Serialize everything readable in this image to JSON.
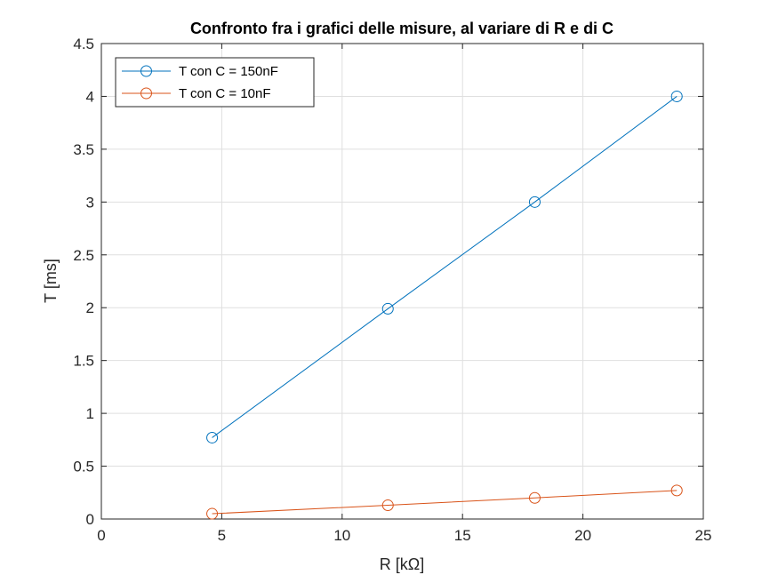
{
  "chart_data": {
    "type": "line",
    "title": "Confronto fra i grafici delle misure, al variare di R e di C",
    "xlabel": "R [kΩ]",
    "ylabel": "T [ms]",
    "xlim": [
      0,
      25
    ],
    "ylim": [
      0,
      4.5
    ],
    "xticks": [
      0,
      5,
      10,
      15,
      20,
      25
    ],
    "yticks": [
      0,
      0.5,
      1,
      1.5,
      2,
      2.5,
      3,
      3.5,
      4,
      4.5
    ],
    "xtick_labels": [
      "0",
      "5",
      "10",
      "15",
      "20",
      "25"
    ],
    "ytick_labels": [
      "0",
      "0.5",
      "1",
      "1.5",
      "2",
      "2.5",
      "3",
      "3.5",
      "4",
      "4.5"
    ],
    "grid": true,
    "legend_position": "top-left",
    "marker": "circle",
    "series": [
      {
        "name": "T con C = 150nF",
        "color": "#0072BD",
        "x": [
          4.6,
          11.9,
          18.0,
          23.9
        ],
        "y": [
          0.77,
          1.99,
          3.0,
          4.0
        ]
      },
      {
        "name": "T con C = 10nF",
        "color": "#D95319",
        "x": [
          4.6,
          11.9,
          18.0,
          23.9
        ],
        "y": [
          0.05,
          0.13,
          0.2,
          0.27
        ]
      }
    ]
  }
}
